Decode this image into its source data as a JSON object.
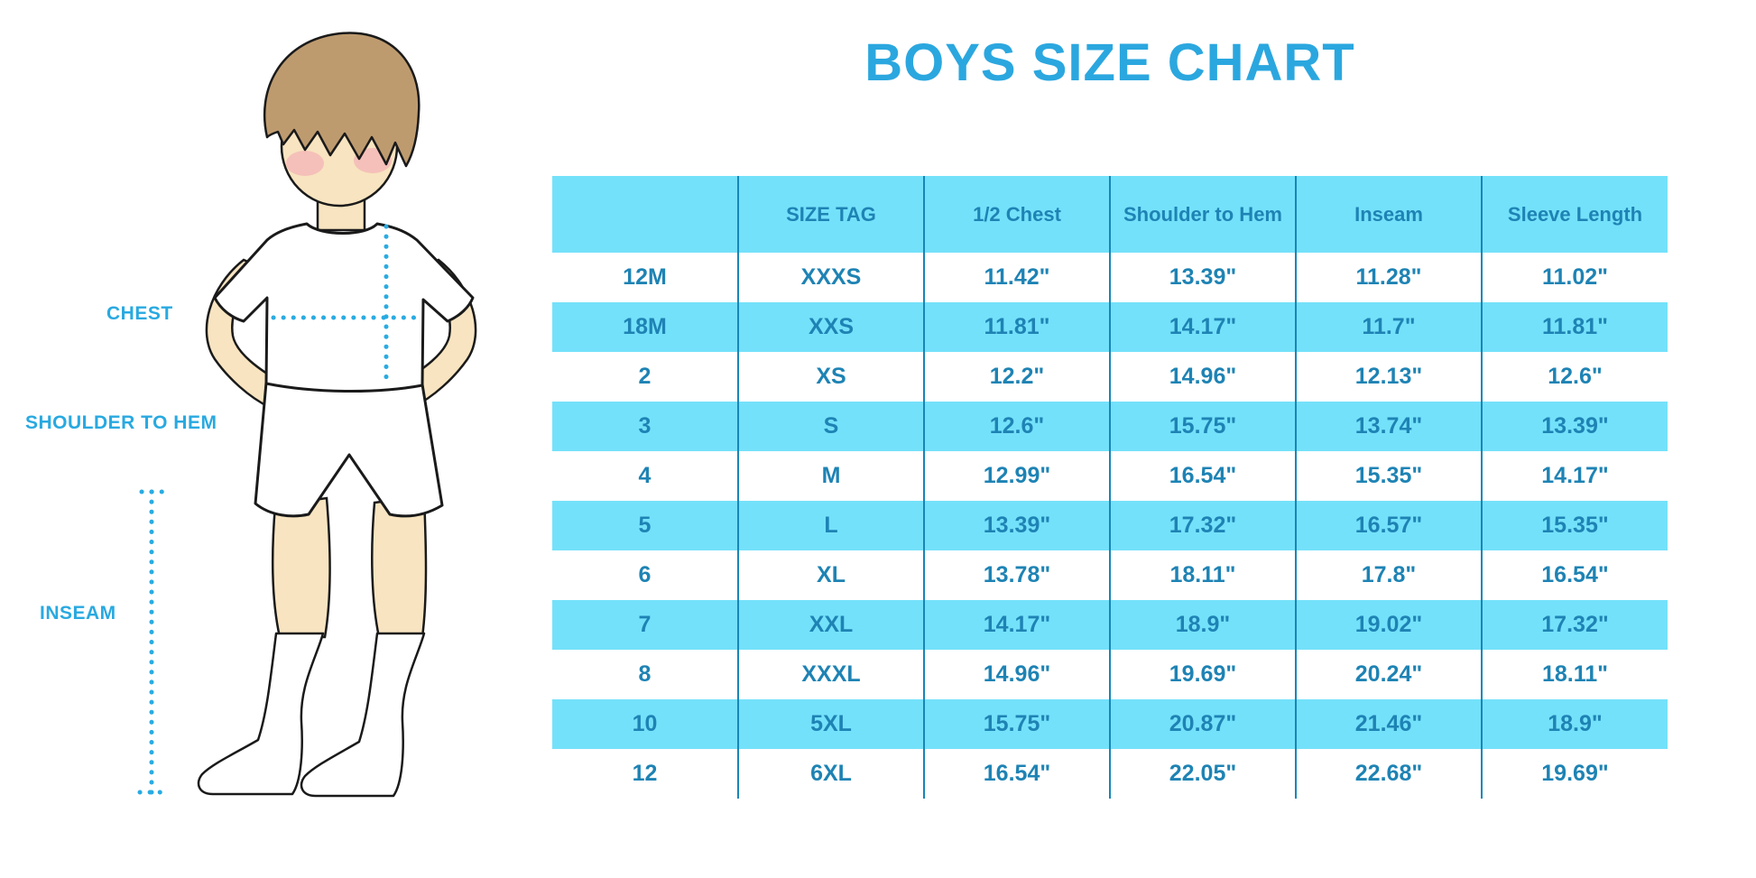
{
  "page": {
    "title": "BOYS SIZE CHART"
  },
  "figure_labels": {
    "chest": "CHEST",
    "shoulder_to_hem": "SHOULDER TO HEM",
    "inseam": "INSEAM"
  },
  "colors": {
    "accent_blue": "#29A9E0",
    "title_blue": "#2BA7DF",
    "table_stripe": "#74E1FA",
    "table_text": "#1E83B4",
    "column_divider": "#1786B8",
    "skin": "#F8E4C0",
    "hair": "#BE9B6F",
    "blush": "#F2A3B3"
  },
  "chart_data": {
    "type": "table",
    "title": "BOYS SIZE CHART",
    "columns": [
      "",
      "SIZE TAG",
      "1/2 Chest",
      "Shoulder to Hem",
      "Inseam",
      "Sleeve Length"
    ],
    "rows": [
      [
        "12M",
        "XXXS",
        "11.42\"",
        "13.39\"",
        "11.28\"",
        "11.02\""
      ],
      [
        "18M",
        "XXS",
        "11.81\"",
        "14.17\"",
        "11.7\"",
        "11.81\""
      ],
      [
        "2",
        "XS",
        "12.2\"",
        "14.96\"",
        "12.13\"",
        "12.6\""
      ],
      [
        "3",
        "S",
        "12.6\"",
        "15.75\"",
        "13.74\"",
        "13.39\""
      ],
      [
        "4",
        "M",
        "12.99\"",
        "16.54\"",
        "15.35\"",
        "14.17\""
      ],
      [
        "5",
        "L",
        "13.39\"",
        "17.32\"",
        "16.57\"",
        "15.35\""
      ],
      [
        "6",
        "XL",
        "13.78\"",
        "18.11\"",
        "17.8\"",
        "16.54\""
      ],
      [
        "7",
        "XXL",
        "14.17\"",
        "18.9\"",
        "19.02\"",
        "17.32\""
      ],
      [
        "8",
        "XXXL",
        "14.96\"",
        "19.69\"",
        "20.24\"",
        "18.11\""
      ],
      [
        "10",
        "5XL",
        "15.75\"",
        "20.87\"",
        "21.46\"",
        "18.9\""
      ],
      [
        "12",
        "6XL",
        "16.54\"",
        "22.05\"",
        "22.68\"",
        "19.69\""
      ]
    ]
  }
}
